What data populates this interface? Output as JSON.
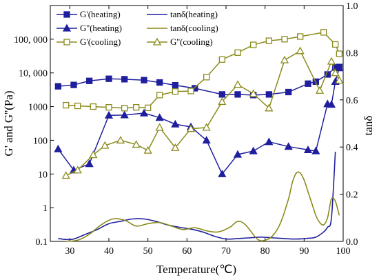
{
  "chart_data": {
    "type": "line",
    "xlabel": "Temperature(℃)",
    "ylabel_left": "G' and G''(Pa)",
    "ylabel_right": "tanδ",
    "xlim": [
      25,
      100
    ],
    "x_ticks": [
      30,
      40,
      50,
      60,
      70,
      80,
      90,
      100
    ],
    "y_left_scale": "log",
    "y_left_lim": [
      0.1,
      1000000
    ],
    "y_left_ticks": [
      {
        "value": 0.1,
        "label": "0.1"
      },
      {
        "value": 1,
        "label": "1"
      },
      {
        "value": 10,
        "label": "10"
      },
      {
        "value": 100,
        "label": "100"
      },
      {
        "value": 1000,
        "label": "1000"
      },
      {
        "value": 10000,
        "label": "10, 000"
      },
      {
        "value": 100000,
        "label": "100, 000"
      }
    ],
    "y_right_lim": [
      0.0,
      1.0
    ],
    "y_right_ticks": [
      {
        "value": 0.0,
        "label": "0.0"
      },
      {
        "value": 0.2,
        "label": "0.2"
      },
      {
        "value": 0.4,
        "label": "0.4"
      },
      {
        "value": 0.6,
        "label": "0.6"
      },
      {
        "value": 0.8,
        "label": "0.8"
      },
      {
        "value": 1.0,
        "label": "1.0"
      }
    ],
    "legend": {
      "placement": "top-left",
      "columns": 2
    },
    "series": [
      {
        "name": "G'(heating)",
        "axis": "left",
        "color": "#1f1f9e",
        "marker": "square-filled",
        "x": [
          27,
          31,
          35,
          40,
          44,
          49,
          53,
          57,
          62,
          69,
          73,
          77,
          81,
          86,
          91,
          93,
          96,
          98,
          99
        ],
        "y": [
          4000,
          4400,
          5800,
          6700,
          6500,
          6100,
          5200,
          4300,
          3500,
          2300,
          2300,
          2200,
          2300,
          2700,
          4800,
          5500,
          9000,
          14500,
          15000
        ]
      },
      {
        "name": "G''(heating)",
        "axis": "left",
        "color": "#1f1f9e",
        "marker": "triangle-filled",
        "x": [
          27,
          31,
          35,
          40,
          44,
          49,
          53,
          57,
          61,
          65,
          69,
          73,
          77,
          81,
          86,
          91,
          93,
          96,
          97,
          98,
          99
        ],
        "y": [
          55,
          13,
          20,
          550,
          560,
          640,
          470,
          300,
          250,
          100,
          10,
          38,
          48,
          90,
          65,
          52,
          48,
          1200,
          1150,
          5500,
          14000
        ]
      },
      {
        "name": "G'(cooling)",
        "axis": "left",
        "color": "#8a8a1a",
        "marker": "square-open",
        "x": [
          29,
          32,
          36,
          40,
          44,
          47,
          50,
          53,
          57,
          61,
          65,
          69,
          73,
          77,
          81,
          85,
          89,
          95,
          98,
          99
        ],
        "y": [
          1100,
          1050,
          1000,
          950,
          900,
          950,
          920,
          2200,
          2800,
          2900,
          7500,
          25000,
          40000,
          68000,
          90000,
          100000,
          120000,
          160000,
          70000,
          37000
        ]
      },
      {
        "name": "G''(cooling)",
        "axis": "left",
        "color": "#8a8a1a",
        "marker": "triangle-open",
        "x": [
          29,
          32,
          36,
          39,
          43,
          47,
          50,
          53,
          57,
          61,
          65,
          69,
          73,
          77,
          81,
          85,
          89,
          94,
          97,
          98,
          99
        ],
        "y": [
          9,
          13,
          37,
          70,
          100,
          75,
          50,
          240,
          60,
          220,
          240,
          1400,
          4500,
          2400,
          900,
          24000,
          45000,
          3000,
          22000,
          10000,
          6000
        ]
      },
      {
        "name": "tanδ(heating)",
        "axis": "right",
        "color": "#1f1f9e",
        "marker": "none",
        "x": [
          27,
          29,
          31,
          34,
          37,
          40,
          43,
          46,
          49,
          52,
          55,
          58,
          61,
          64,
          67,
          70,
          73,
          76,
          79,
          82,
          85,
          88,
          91,
          93,
          95,
          96,
          97,
          98
        ],
        "y": [
          0.012,
          0.008,
          0.01,
          0.03,
          0.05,
          0.075,
          0.085,
          0.095,
          0.095,
          0.085,
          0.07,
          0.06,
          0.052,
          0.04,
          0.022,
          0.01,
          0.012,
          0.015,
          0.018,
          0.015,
          0.012,
          0.01,
          0.013,
          0.018,
          0.04,
          0.06,
          0.1,
          0.38
        ]
      },
      {
        "name": "tanδ(cooling)",
        "axis": "right",
        "color": "#8a8a1a",
        "marker": "none",
        "x": [
          29,
          32,
          35,
          38,
          41,
          44,
          47,
          50,
          53,
          56,
          59,
          62,
          65,
          68,
          71,
          73,
          75,
          78,
          80,
          82,
          84,
          86,
          87,
          88,
          89,
          90,
          91,
          92,
          93,
          94,
          95,
          96,
          97,
          98,
          99
        ],
        "y": [
          0.0,
          0.005,
          0.03,
          0.07,
          0.095,
          0.09,
          0.065,
          0.075,
          0.08,
          0.065,
          0.05,
          0.058,
          0.045,
          0.04,
          0.06,
          0.085,
          0.07,
          0.01,
          0.005,
          0.025,
          0.08,
          0.18,
          0.25,
          0.29,
          0.29,
          0.26,
          0.21,
          0.16,
          0.11,
          0.08,
          0.07,
          0.1,
          0.18,
          0.17,
          0.11
        ]
      }
    ]
  }
}
